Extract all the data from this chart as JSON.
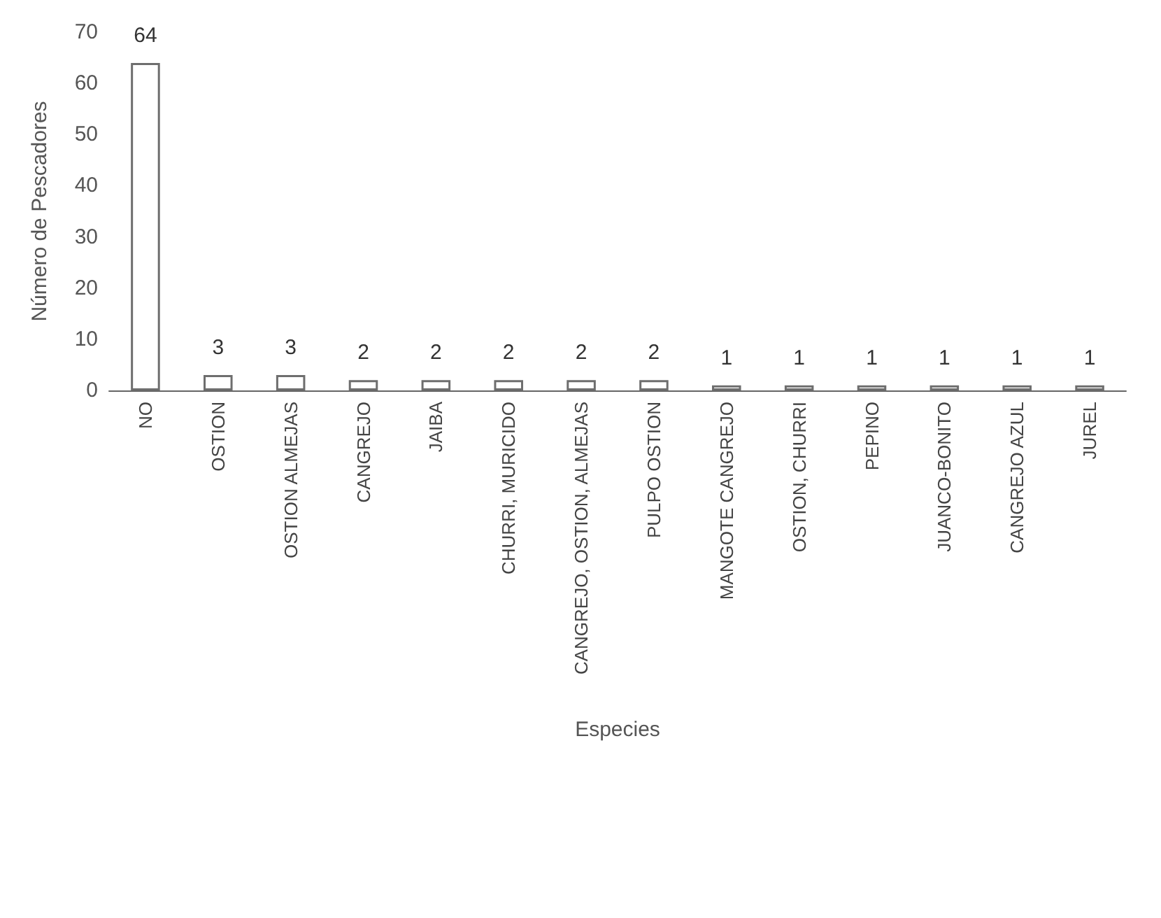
{
  "chart_data": {
    "type": "bar",
    "xlabel": "Especies",
    "ylabel": "Número de Pescadores",
    "categories": [
      "NO",
      "OSTION",
      "OSTION ALMEJAS",
      "CANGREJO",
      "JAIBA",
      "CHURRI, MURICIDO",
      "CANGREJO, OSTION, ALMEJAS",
      "PULPO OSTION",
      "MANGOTE CANGREJO",
      "OSTION, CHURRI",
      "PEPINO",
      "JUANCO-BONITO",
      "CANGREJO AZUL",
      "JUREL"
    ],
    "values": [
      64,
      3,
      3,
      2,
      2,
      2,
      2,
      2,
      1,
      1,
      1,
      1,
      1,
      1
    ],
    "color": "#ffffff",
    "ylim": [
      0,
      70
    ],
    "yticks": [
      0,
      10,
      20,
      30,
      40,
      50,
      60,
      70
    ],
    "data_labels": true,
    "grid": false
  }
}
